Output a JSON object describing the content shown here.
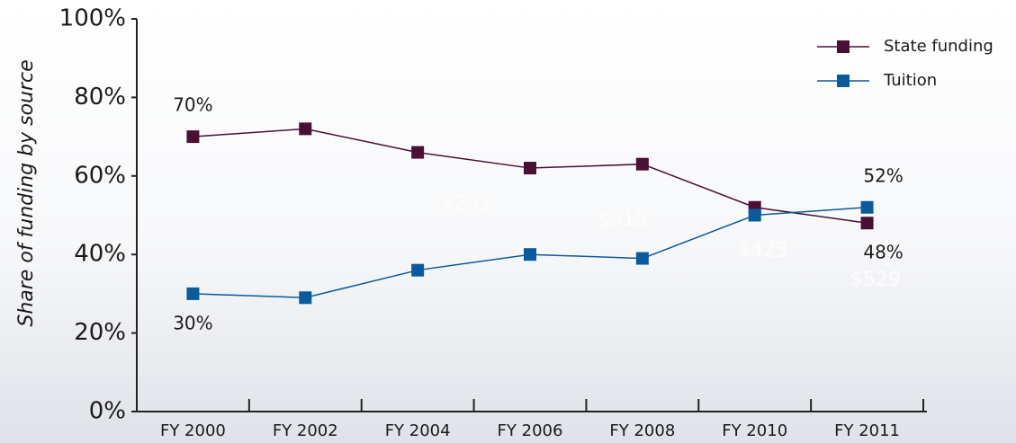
{
  "chart_data": {
    "type": "line",
    "y_label": "Share of funding by source",
    "categories": [
      "FY 2000",
      "FY 2002",
      "FY 2004",
      "FY 2006",
      "FY 2008",
      "FY 2010",
      "FY 2011"
    ],
    "series": [
      {
        "name": "State funding",
        "color": "#4a0f35",
        "values": [
          70,
          72,
          66,
          62,
          63,
          52,
          48
        ],
        "value_labels": [
          "70%",
          null,
          null,
          null,
          null,
          null,
          "48%"
        ]
      },
      {
        "name": "Tuition",
        "color": "#0b5a9c",
        "values": [
          30,
          29,
          36,
          40,
          39,
          50,
          52
        ],
        "value_labels": [
          "30%",
          null,
          null,
          null,
          null,
          null,
          "52%"
        ]
      }
    ],
    "annotations": [
      "$251",
      "$315",
      "$423",
      "$529"
    ],
    "ylim": [
      0,
      100
    ],
    "yticks": [
      {
        "value": 0,
        "label": "0%"
      },
      {
        "value": 20,
        "label": "20%"
      },
      {
        "value": 40,
        "label": "40%"
      },
      {
        "value": 60,
        "label": "60%"
      },
      {
        "value": 80,
        "label": "80%"
      },
      {
        "value": 100,
        "label": "100%"
      }
    ],
    "legend": "top-right"
  }
}
